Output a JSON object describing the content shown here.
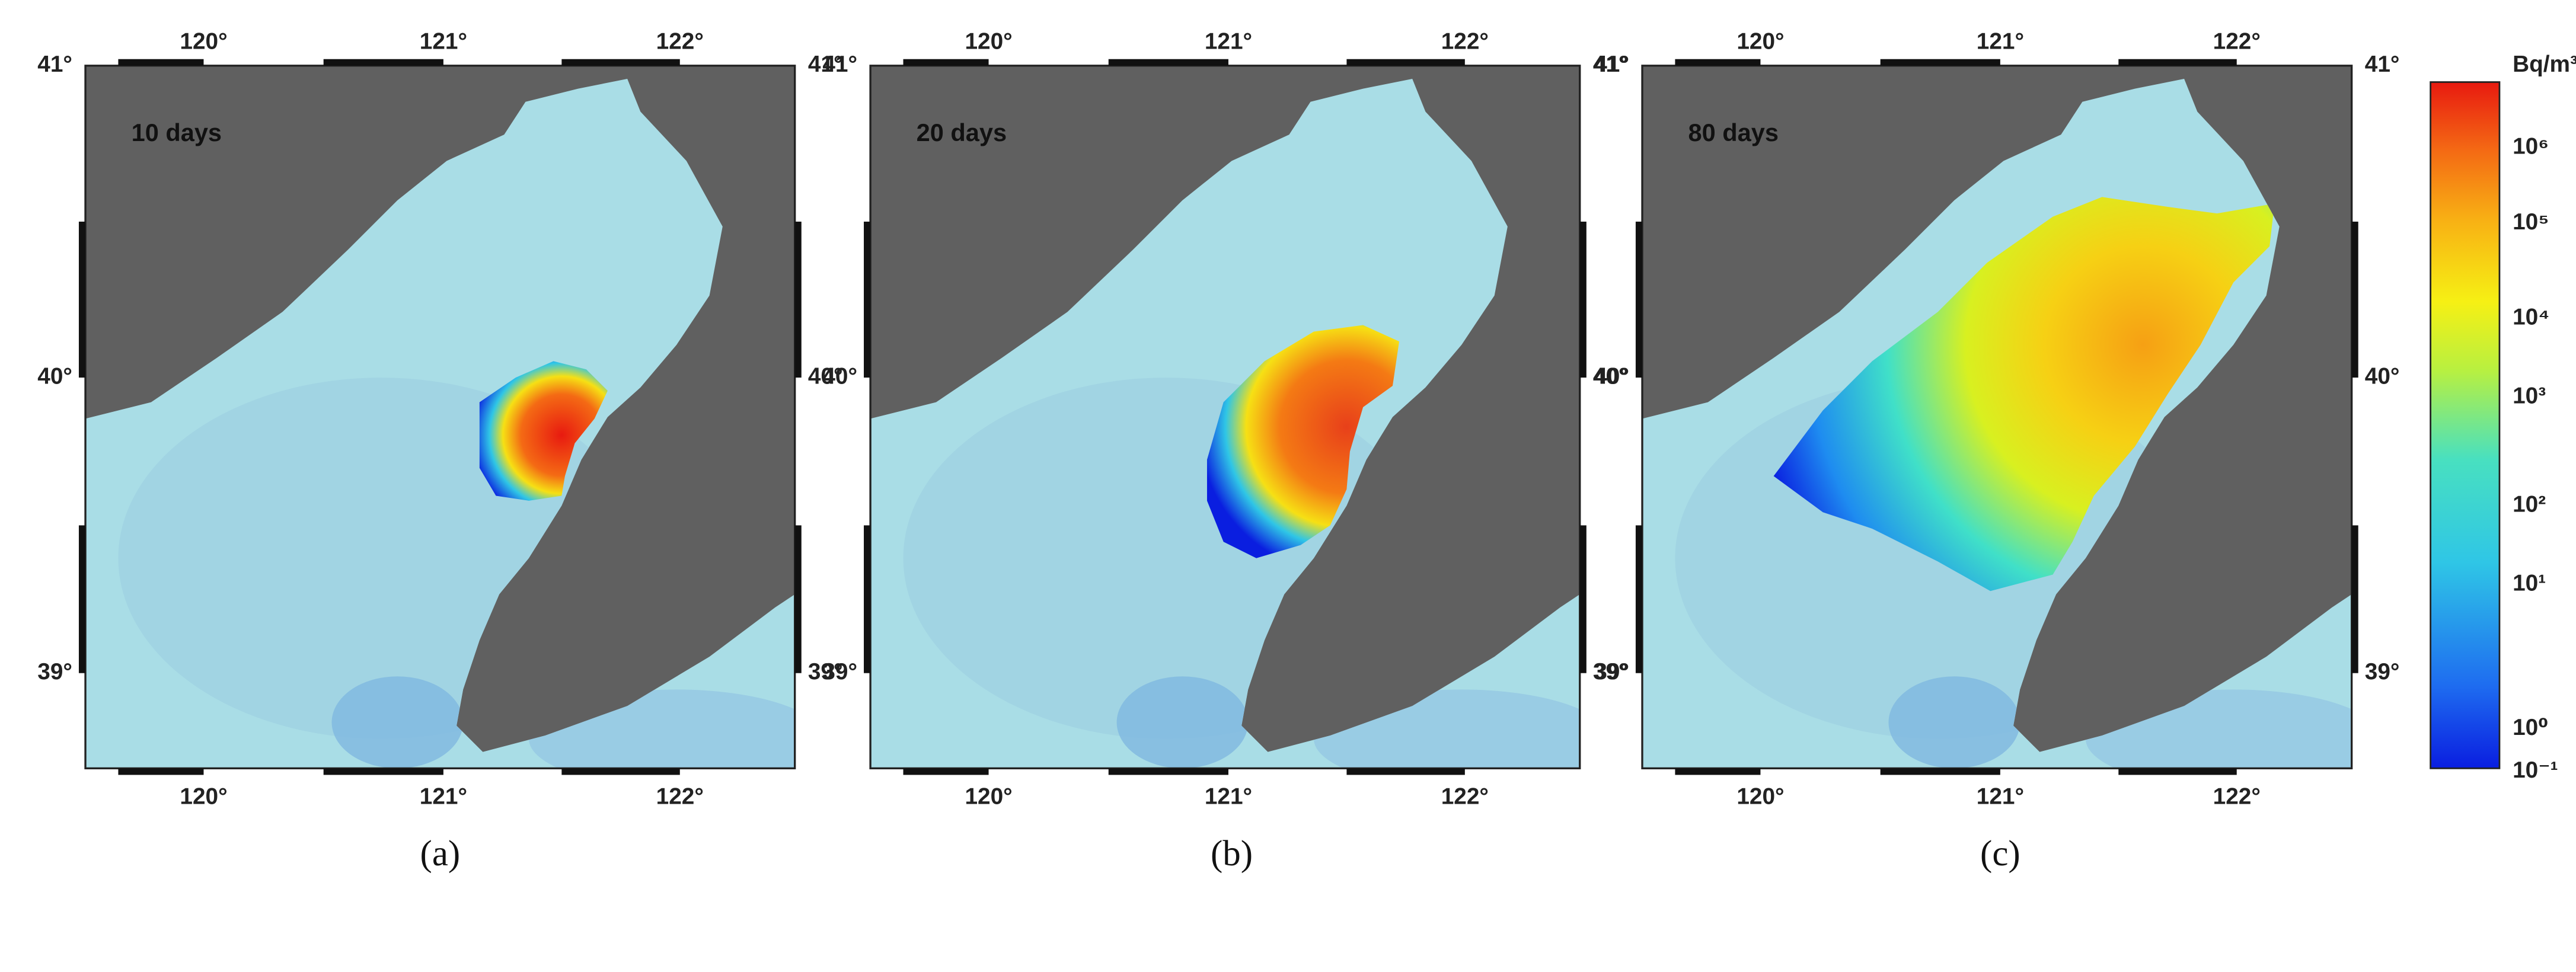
{
  "panels": [
    {
      "label": "10 days",
      "caption": "(a)"
    },
    {
      "label": "20 days",
      "caption": "(b)"
    },
    {
      "label": "80 days",
      "caption": "(c)"
    }
  ],
  "longitude_ticks": [
    "120°",
    "121°",
    "122°"
  ],
  "latitude_ticks": [
    "41°",
    "40°",
    "39°"
  ],
  "colorbar": {
    "unit": "Bq/m³",
    "ticks": [
      "10⁶",
      "10⁵",
      "10⁴",
      "10³",
      "10²",
      "10¹",
      "10⁰",
      "10⁻¹"
    ]
  }
}
